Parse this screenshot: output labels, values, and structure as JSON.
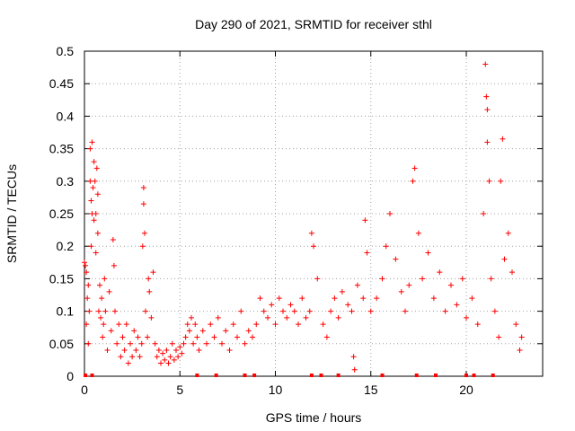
{
  "chart_data": {
    "type": "scatter",
    "title": "Day 290 of 2021, SRMTID for receiver sthl",
    "xlabel": "GPS time / hours",
    "ylabel": "SRMTID / TECUs",
    "xlim": [
      0,
      24
    ],
    "ylim": [
      0,
      0.5
    ],
    "xticks": [
      0,
      5,
      10,
      15,
      20
    ],
    "xtick_labels": [
      "0",
      "5",
      "10",
      "15",
      "20"
    ],
    "yticks": [
      0,
      0.05,
      0.1,
      0.15,
      0.2,
      0.25,
      0.3,
      0.35,
      0.4,
      0.45,
      0.5
    ],
    "ytick_labels": [
      "0",
      "0.05",
      "0.1",
      "0.15",
      "0.2",
      "0.25",
      "0.3",
      "0.35",
      "0.4",
      "0.45",
      "0.5"
    ],
    "grid": true,
    "marker": "+",
    "color": "#ff0000",
    "series": [
      {
        "name": "SRMTID",
        "points": [
          [
            0.0,
            0.175
          ],
          [
            0.05,
            0.17
          ],
          [
            0.1,
            0.16
          ],
          [
            0.1,
            0.08
          ],
          [
            0.15,
            0.12
          ],
          [
            0.2,
            0.05
          ],
          [
            0.2,
            0.14
          ],
          [
            0.25,
            0.1
          ],
          [
            0.3,
            0.3
          ],
          [
            0.3,
            0.35
          ],
          [
            0.35,
            0.27
          ],
          [
            0.35,
            0.2
          ],
          [
            0.4,
            0.36
          ],
          [
            0.4,
            0.25
          ],
          [
            0.45,
            0.29
          ],
          [
            0.5,
            0.24
          ],
          [
            0.5,
            0.33
          ],
          [
            0.55,
            0.3
          ],
          [
            0.6,
            0.19
          ],
          [
            0.6,
            0.25
          ],
          [
            0.65,
            0.32
          ],
          [
            0.7,
            0.22
          ],
          [
            0.7,
            0.28
          ],
          [
            0.75,
            0.1
          ],
          [
            0.8,
            0.14
          ],
          [
            0.85,
            0.09
          ],
          [
            0.9,
            0.12
          ],
          [
            0.95,
            0.06
          ],
          [
            1.0,
            0.08
          ],
          [
            1.05,
            0.15
          ],
          [
            1.1,
            0.1
          ],
          [
            1.2,
            0.04
          ],
          [
            1.3,
            0.13
          ],
          [
            1.4,
            0.07
          ],
          [
            1.5,
            0.21
          ],
          [
            1.55,
            0.17
          ],
          [
            1.6,
            0.1
          ],
          [
            1.7,
            0.05
          ],
          [
            1.8,
            0.08
          ],
          [
            1.9,
            0.03
          ],
          [
            2.0,
            0.06
          ],
          [
            2.1,
            0.04
          ],
          [
            2.2,
            0.08
          ],
          [
            2.3,
            0.02
          ],
          [
            2.4,
            0.05
          ],
          [
            2.5,
            0.03
          ],
          [
            2.6,
            0.07
          ],
          [
            2.7,
            0.04
          ],
          [
            2.8,
            0.06
          ],
          [
            2.9,
            0.03
          ],
          [
            3.0,
            0.05
          ],
          [
            3.05,
            0.2
          ],
          [
            3.1,
            0.29
          ],
          [
            3.1,
            0.265
          ],
          [
            3.15,
            0.22
          ],
          [
            3.2,
            0.1
          ],
          [
            3.3,
            0.06
          ],
          [
            3.35,
            0.15
          ],
          [
            3.4,
            0.13
          ],
          [
            3.5,
            0.09
          ],
          [
            3.6,
            0.16
          ],
          [
            3.7,
            0.05
          ],
          [
            3.8,
            0.03
          ],
          [
            3.9,
            0.04
          ],
          [
            4.0,
            0.02
          ],
          [
            4.1,
            0.035
          ],
          [
            4.2,
            0.025
          ],
          [
            4.3,
            0.04
          ],
          [
            4.4,
            0.02
          ],
          [
            4.5,
            0.03
          ],
          [
            4.6,
            0.05
          ],
          [
            4.7,
            0.025
          ],
          [
            4.8,
            0.04
          ],
          [
            4.9,
            0.03
          ],
          [
            5.0,
            0.045
          ],
          [
            5.1,
            0.035
          ],
          [
            5.2,
            0.05
          ],
          [
            5.3,
            0.06
          ],
          [
            5.4,
            0.08
          ],
          [
            5.5,
            0.07
          ],
          [
            5.6,
            0.09
          ],
          [
            5.7,
            0.05
          ],
          [
            5.8,
            0.08
          ],
          [
            5.9,
            0.06
          ],
          [
            6.0,
            0.04
          ],
          [
            6.2,
            0.07
          ],
          [
            6.4,
            0.05
          ],
          [
            6.6,
            0.08
          ],
          [
            6.8,
            0.06
          ],
          [
            7.0,
            0.09
          ],
          [
            7.2,
            0.05
          ],
          [
            7.4,
            0.07
          ],
          [
            7.6,
            0.04
          ],
          [
            7.8,
            0.08
          ],
          [
            8.0,
            0.06
          ],
          [
            8.2,
            0.1
          ],
          [
            8.4,
            0.05
          ],
          [
            8.6,
            0.07
          ],
          [
            8.8,
            0.06
          ],
          [
            9.0,
            0.08
          ],
          [
            9.2,
            0.12
          ],
          [
            9.4,
            0.1
          ],
          [
            9.6,
            0.09
          ],
          [
            9.8,
            0.11
          ],
          [
            10.0,
            0.08
          ],
          [
            10.2,
            0.12
          ],
          [
            10.4,
            0.1
          ],
          [
            10.6,
            0.09
          ],
          [
            10.8,
            0.11
          ],
          [
            11.0,
            0.1
          ],
          [
            11.2,
            0.08
          ],
          [
            11.4,
            0.12
          ],
          [
            11.6,
            0.09
          ],
          [
            11.8,
            0.1
          ],
          [
            11.9,
            0.22
          ],
          [
            12.0,
            0.2
          ],
          [
            12.2,
            0.15
          ],
          [
            12.5,
            0.08
          ],
          [
            12.7,
            0.06
          ],
          [
            12.9,
            0.1
          ],
          [
            13.1,
            0.12
          ],
          [
            13.3,
            0.09
          ],
          [
            13.5,
            0.13
          ],
          [
            13.8,
            0.11
          ],
          [
            14.0,
            0.1
          ],
          [
            14.1,
            0.03
          ],
          [
            14.15,
            0.01
          ],
          [
            14.3,
            0.14
          ],
          [
            14.6,
            0.12
          ],
          [
            14.7,
            0.24
          ],
          [
            14.8,
            0.19
          ],
          [
            15.0,
            0.1
          ],
          [
            15.3,
            0.12
          ],
          [
            15.6,
            0.15
          ],
          [
            15.8,
            0.2
          ],
          [
            16.0,
            0.25
          ],
          [
            16.3,
            0.18
          ],
          [
            16.6,
            0.13
          ],
          [
            16.8,
            0.1
          ],
          [
            17.0,
            0.14
          ],
          [
            17.2,
            0.3
          ],
          [
            17.3,
            0.32
          ],
          [
            17.5,
            0.22
          ],
          [
            17.7,
            0.15
          ],
          [
            18.0,
            0.19
          ],
          [
            18.3,
            0.12
          ],
          [
            18.6,
            0.16
          ],
          [
            18.9,
            0.1
          ],
          [
            19.2,
            0.14
          ],
          [
            19.5,
            0.11
          ],
          [
            19.8,
            0.15
          ],
          [
            20.0,
            0.09
          ],
          [
            20.3,
            0.12
          ],
          [
            20.6,
            0.08
          ],
          [
            20.9,
            0.25
          ],
          [
            21.0,
            0.48
          ],
          [
            21.05,
            0.43
          ],
          [
            21.1,
            0.41
          ],
          [
            21.1,
            0.36
          ],
          [
            21.2,
            0.3
          ],
          [
            21.3,
            0.15
          ],
          [
            21.5,
            0.1
          ],
          [
            21.7,
            0.06
          ],
          [
            21.8,
            0.3
          ],
          [
            21.9,
            0.365
          ],
          [
            22.0,
            0.18
          ],
          [
            22.2,
            0.22
          ],
          [
            22.4,
            0.16
          ],
          [
            22.6,
            0.08
          ],
          [
            22.8,
            0.04
          ],
          [
            22.9,
            0.06
          ]
        ]
      }
    ],
    "gap_markers": [
      0.05,
      0.4,
      5.9,
      6.9,
      8.4,
      8.9,
      11.9,
      12.4,
      13.3,
      15.6,
      17.4,
      18.4,
      20.0,
      20.4,
      21.4
    ]
  }
}
